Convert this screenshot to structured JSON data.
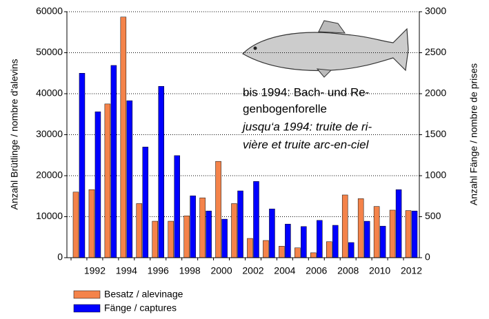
{
  "chart_data": {
    "type": "bar",
    "y_label": "Anzahl Brütlinge / nombre d'alevins",
    "y2_label": "Anzahl Fänge / nombre de prises",
    "annotation": [
      "bis 1994: Bach- und Re-",
      "genbogenforelle",
      "jusqu‘a 1994: truite de ri-",
      "vière et truite arc-en-ciel"
    ],
    "categories": [
      null,
      "1992",
      null,
      "1994",
      null,
      "1996",
      null,
      "1998",
      null,
      "2000",
      null,
      "2002",
      null,
      "2004",
      null,
      "2006",
      null,
      "2008",
      null,
      "2010",
      null,
      "2012"
    ],
    "series": [
      {
        "name": "Besatz / alevinage",
        "color": "#f4834a",
        "values": [
          16000,
          16600,
          37500,
          58700,
          13200,
          8900,
          8900,
          10200,
          14600,
          23500,
          13200,
          4700,
          4200,
          2800,
          2400,
          1200,
          3900,
          15300,
          14400,
          12500,
          11600,
          11500
        ]
      },
      {
        "name": "Fänge / captures",
        "color": "#0000ff",
        "axis": "y2",
        "values": [
          2250,
          1780,
          2345,
          1915,
          1350,
          2090,
          1245,
          755,
          570,
          470,
          815,
          930,
          595,
          410,
          380,
          455,
          395,
          185,
          445,
          385,
          830,
          570
        ]
      }
    ],
    "ylim": [
      0,
      60000
    ],
    "yticks": [
      0,
      10000,
      20000,
      30000,
      40000,
      50000,
      60000
    ],
    "y2lim": [
      0,
      3000
    ],
    "y2ticks": [
      0,
      500,
      1000,
      1500,
      2000,
      2500,
      3000
    ],
    "grid": true
  }
}
